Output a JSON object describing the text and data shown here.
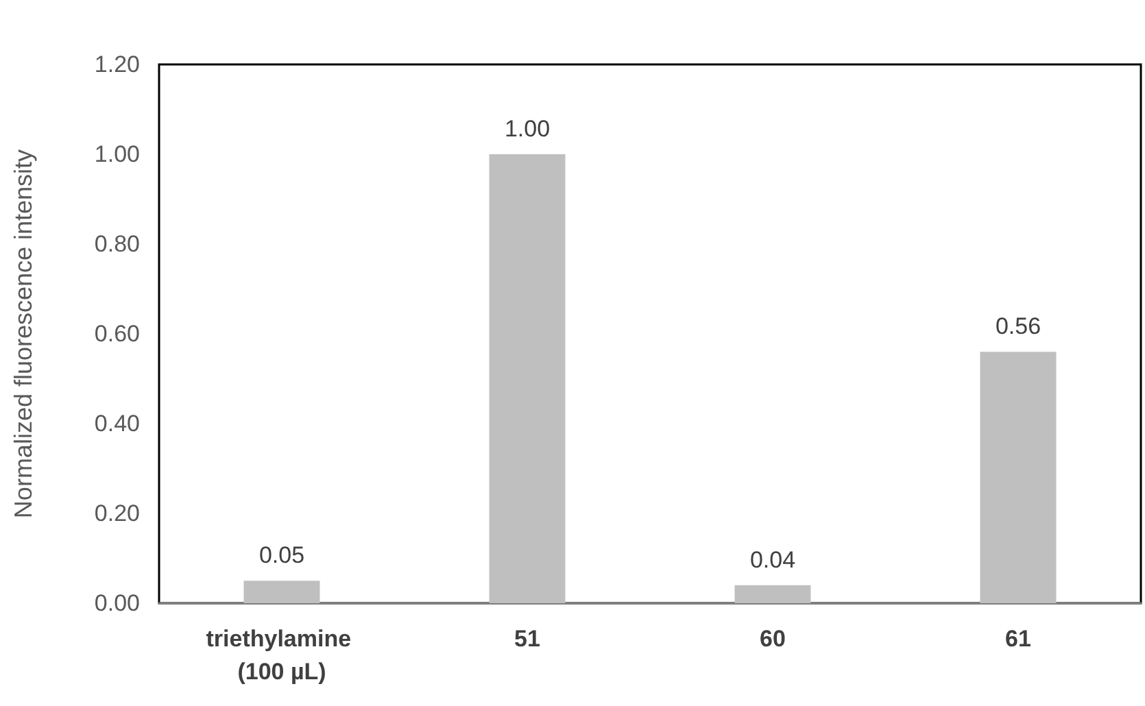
{
  "chart_data": {
    "type": "bar",
    "ylabel": "Normalized fluorescence intensity",
    "categories": [
      "triethylamine (100 µL)",
      "51",
      "60",
      "61"
    ],
    "values": [
      0.05,
      1.0,
      0.04,
      0.56
    ],
    "value_labels": [
      "0.05",
      "1.00",
      "0.04",
      "0.56"
    ],
    "color": "#bfbfbf",
    "ylim": [
      0,
      1.2
    ],
    "yticks": [
      {
        "value": 0,
        "label": "0.00"
      },
      {
        "value": 0.2,
        "label": "0.20"
      },
      {
        "value": 0.4,
        "label": "0.40"
      },
      {
        "value": 0.6,
        "label": "0.60"
      },
      {
        "value": 0.8,
        "label": "0.80"
      },
      {
        "value": 1.0,
        "label": "1.00"
      },
      {
        "value": 1.2,
        "label": "1.20"
      }
    ],
    "grid": false
  }
}
